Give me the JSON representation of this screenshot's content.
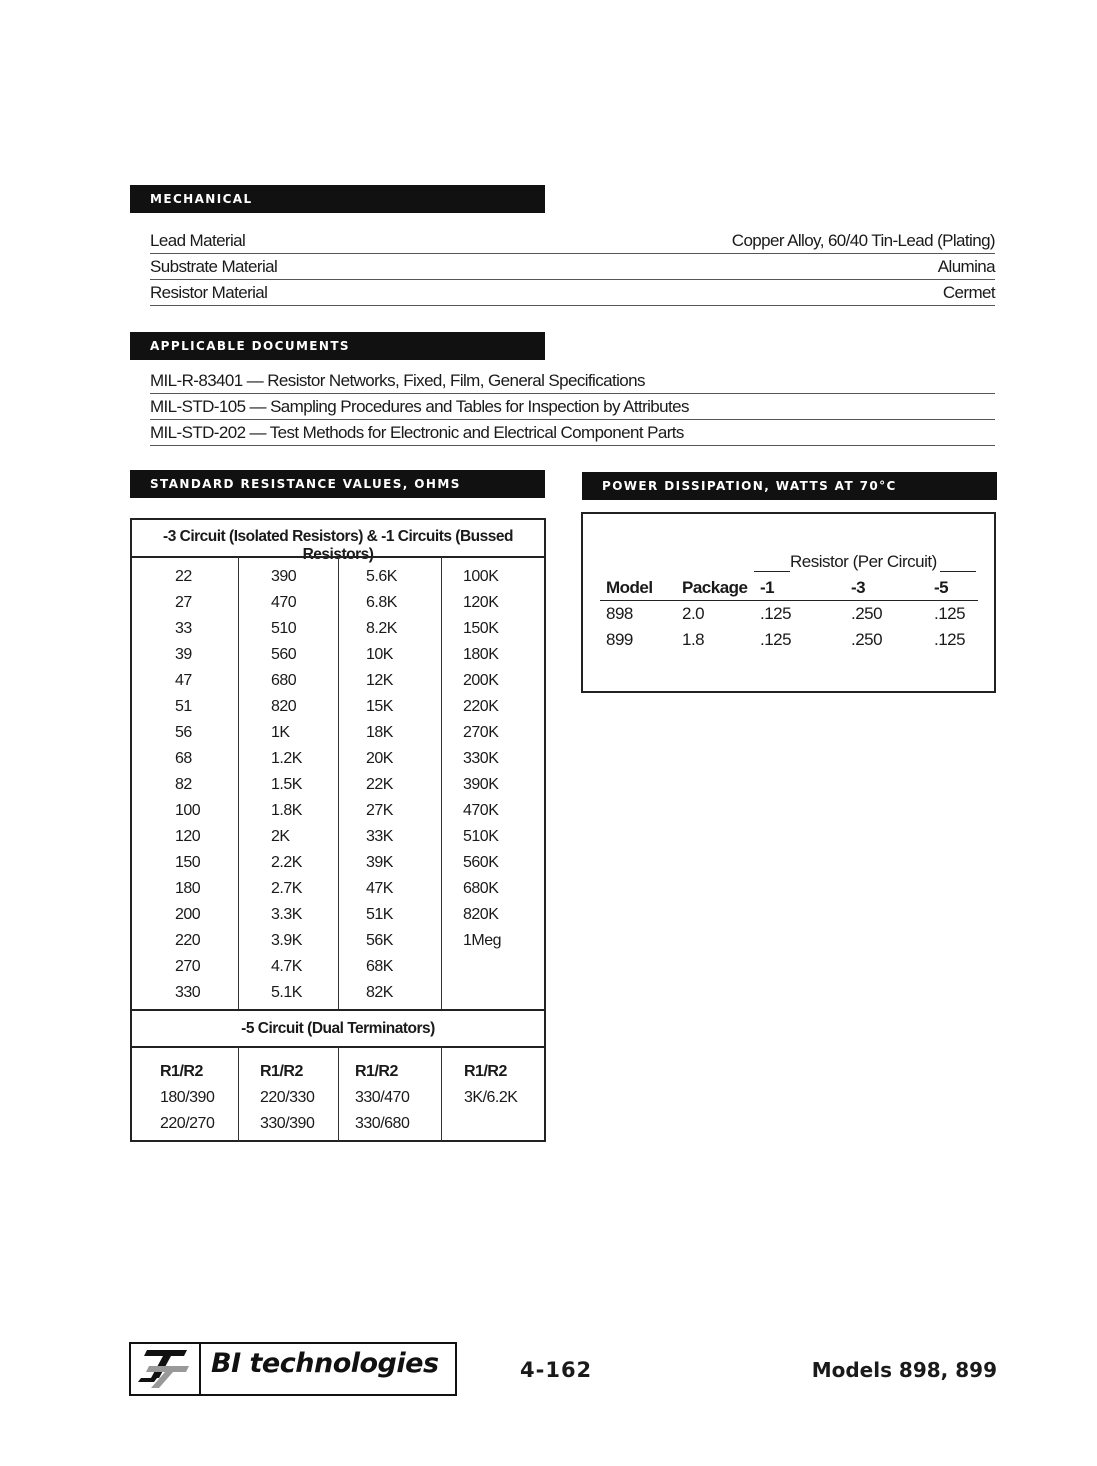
{
  "mechanical": {
    "heading": "Mechanical",
    "rows": [
      {
        "label": "Lead Material",
        "value": "Copper Alloy, 60/40 Tin-Lead (Plating)"
      },
      {
        "label": "Substrate Material",
        "value": "Alumina"
      },
      {
        "label": "Resistor Material",
        "value": "Cermet"
      }
    ]
  },
  "documents": {
    "heading": "Applicable Documents",
    "items": [
      "MIL-R-83401 — Resistor Networks, Fixed, Film, General Specifications",
      "MIL-STD-105 — Sampling Procedures and Tables for Inspection by Attributes",
      "MIL-STD-202 — Test Methods for Electronic and Electrical Component Parts"
    ]
  },
  "resistance": {
    "heading": "Standard Resistance Values, Ohms",
    "table_title": "-3 Circuit (Isolated Resistors) & -1 Circuits (Bussed Resistors)",
    "columns": [
      [
        "22",
        "27",
        "33",
        "39",
        "47",
        "51",
        "56",
        "68",
        "82",
        "100",
        "120",
        "150",
        "180",
        "200",
        "220",
        "270",
        "330"
      ],
      [
        "390",
        "470",
        "510",
        "560",
        "680",
        "820",
        "1K",
        "1.2K",
        "1.5K",
        "1.8K",
        "2K",
        "2.2K",
        "2.7K",
        "3.3K",
        "3.9K",
        "4.7K",
        "5.1K"
      ],
      [
        "5.6K",
        "6.8K",
        "8.2K",
        "10K",
        "12K",
        "15K",
        "18K",
        "20K",
        "22K",
        "27K",
        "33K",
        "39K",
        "47K",
        "51K",
        "56K",
        "68K",
        "82K"
      ],
      [
        "100K",
        "120K",
        "150K",
        "180K",
        "200K",
        "220K",
        "270K",
        "330K",
        "390K",
        "470K",
        "510K",
        "560K",
        "680K",
        "820K",
        "1Meg"
      ]
    ],
    "dual_title": "-5 Circuit (Dual Terminators)",
    "dual_columns": [
      [
        "R1/R2",
        "180/390",
        "220/270"
      ],
      [
        "R1/R2",
        "220/330",
        "330/390"
      ],
      [
        "R1/R2",
        "330/470",
        "330/680"
      ],
      [
        "R1/R2",
        "3K/6.2K"
      ]
    ]
  },
  "power": {
    "heading": "Power Dissipation, Watts at 70°C",
    "group_label": "Resistor (Per Circuit)",
    "headers": [
      "Model",
      "Package",
      "-1",
      "-3",
      "-5"
    ],
    "rows": [
      [
        "898",
        "2.0",
        ".125",
        ".250",
        ".125"
      ],
      [
        "899",
        "1.8",
        ".125",
        ".250",
        ".125"
      ]
    ]
  },
  "footer": {
    "logo_text": "BI technologies",
    "page_number": "4-162",
    "models": "Models 898, 899"
  }
}
